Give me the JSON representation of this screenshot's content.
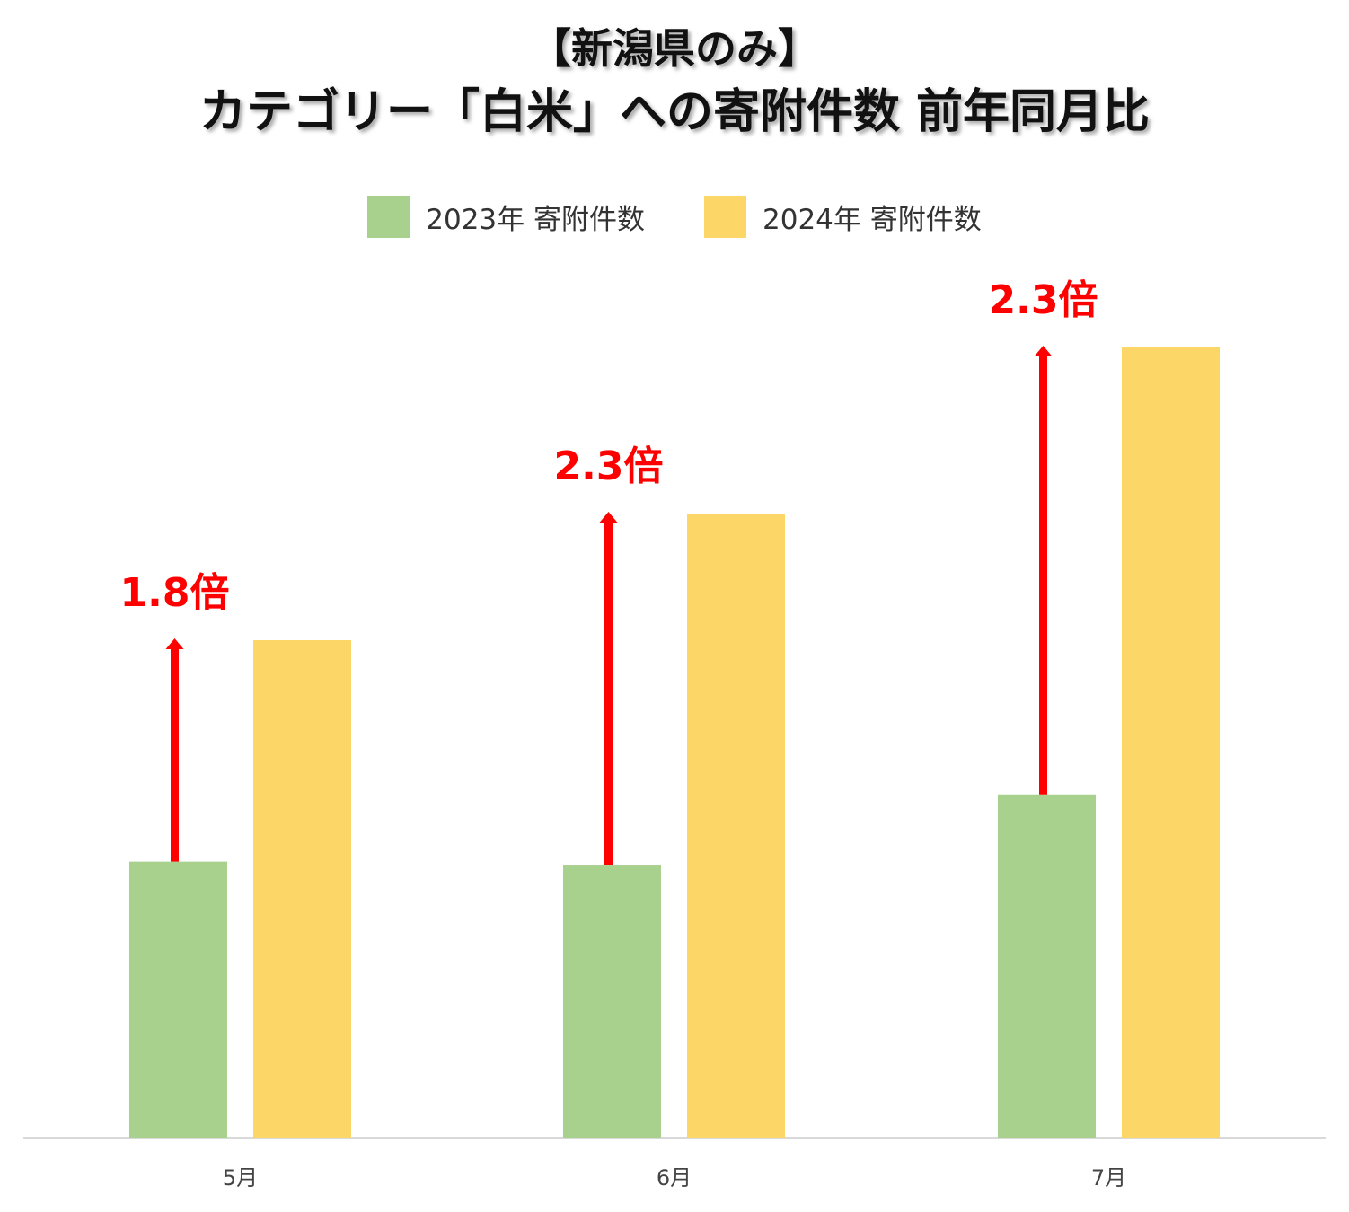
{
  "title": {
    "line1": "【新潟県のみ】",
    "line2": "カテゴリー「白米」への寄附件数 前年同月比"
  },
  "colors": {
    "series_2023": "#a8d18d",
    "series_2024": "#fcd767",
    "arrow": "#ff0000",
    "axis": "#d9d9d9"
  },
  "chart_data": {
    "type": "bar",
    "title": "カテゴリー「白米」への寄附件数 前年同月比",
    "xlabel": "",
    "ylabel": "",
    "ylim": [
      0,
      100
    ],
    "grid": false,
    "legend_position": "top-center",
    "categories": [
      "5月",
      "6月",
      "7月"
    ],
    "series": [
      {
        "name": "2023年 寄附件数",
        "values": [
          35,
          34.5,
          43.5
        ]
      },
      {
        "name": "2024年 寄附件数",
        "values": [
          63,
          79,
          100
        ]
      }
    ],
    "annotations": [
      "1.8倍",
      "2.3倍",
      "2.3倍"
    ]
  }
}
